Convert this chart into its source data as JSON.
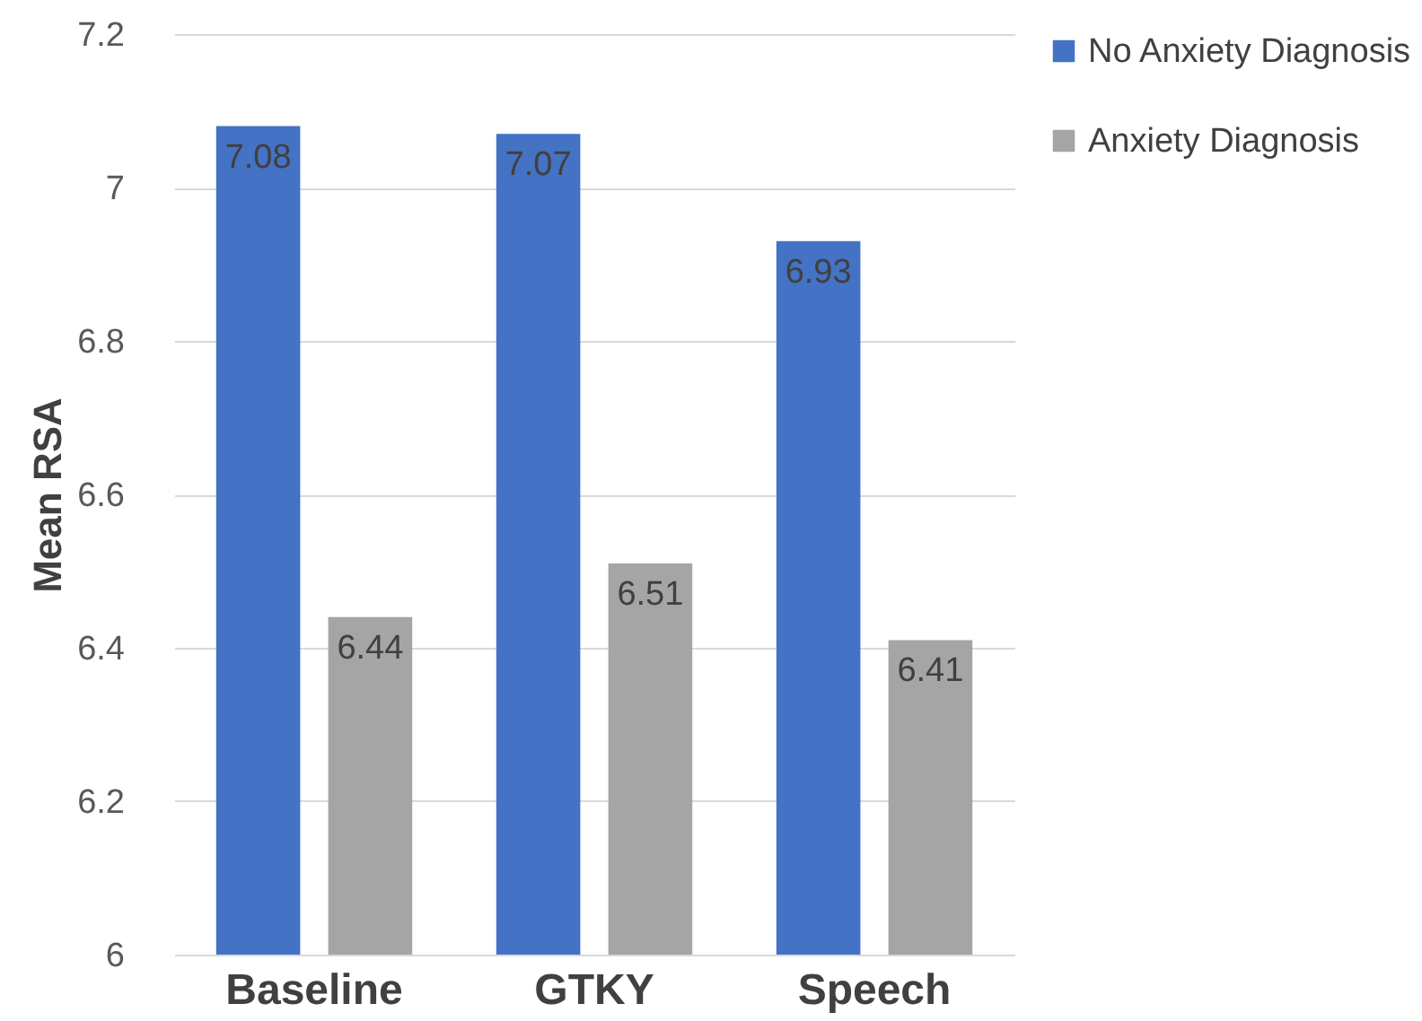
{
  "chart_data": {
    "type": "bar",
    "ylabel": "Mean RSA",
    "categories": [
      "Baseline",
      "GTKY",
      "Speech"
    ],
    "series": [
      {
        "name": "No Anxiety Diagnosis",
        "color": "#4472c4",
        "values": [
          7.08,
          7.07,
          6.93
        ]
      },
      {
        "name": "Anxiety Diagnosis",
        "color": "#a5a5a5",
        "values": [
          6.44,
          6.51,
          6.41
        ]
      }
    ],
    "ylim": [
      6,
      7.2
    ],
    "yticks": [
      6,
      6.2,
      6.4,
      6.6,
      6.8,
      7,
      7.2
    ],
    "grid": "y",
    "legend": "right",
    "data_labels": true
  }
}
